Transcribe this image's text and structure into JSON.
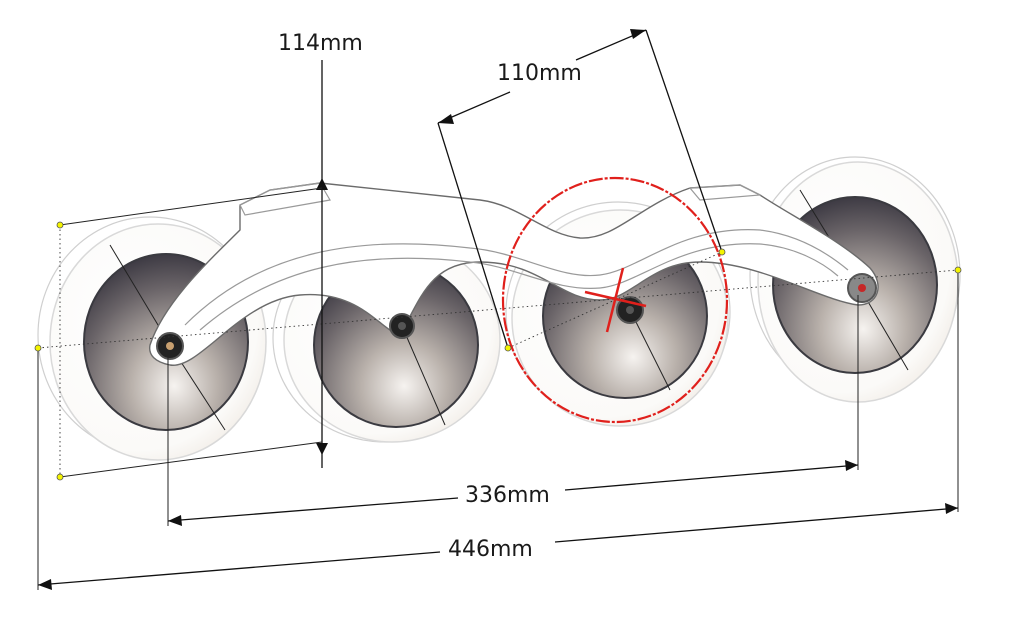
{
  "dimensions": {
    "wheel_height": "114mm",
    "wheel_diameter": "110mm",
    "axle_spacing": "336mm",
    "overall_length": "446mm"
  },
  "colors": {
    "highlight": "#e0201c",
    "hub_fill": "#2a2a30",
    "tire_edge": "#d8d8d8"
  },
  "components": [
    "frame",
    "wheel-1",
    "wheel-2",
    "wheel-3",
    "wheel-4"
  ]
}
